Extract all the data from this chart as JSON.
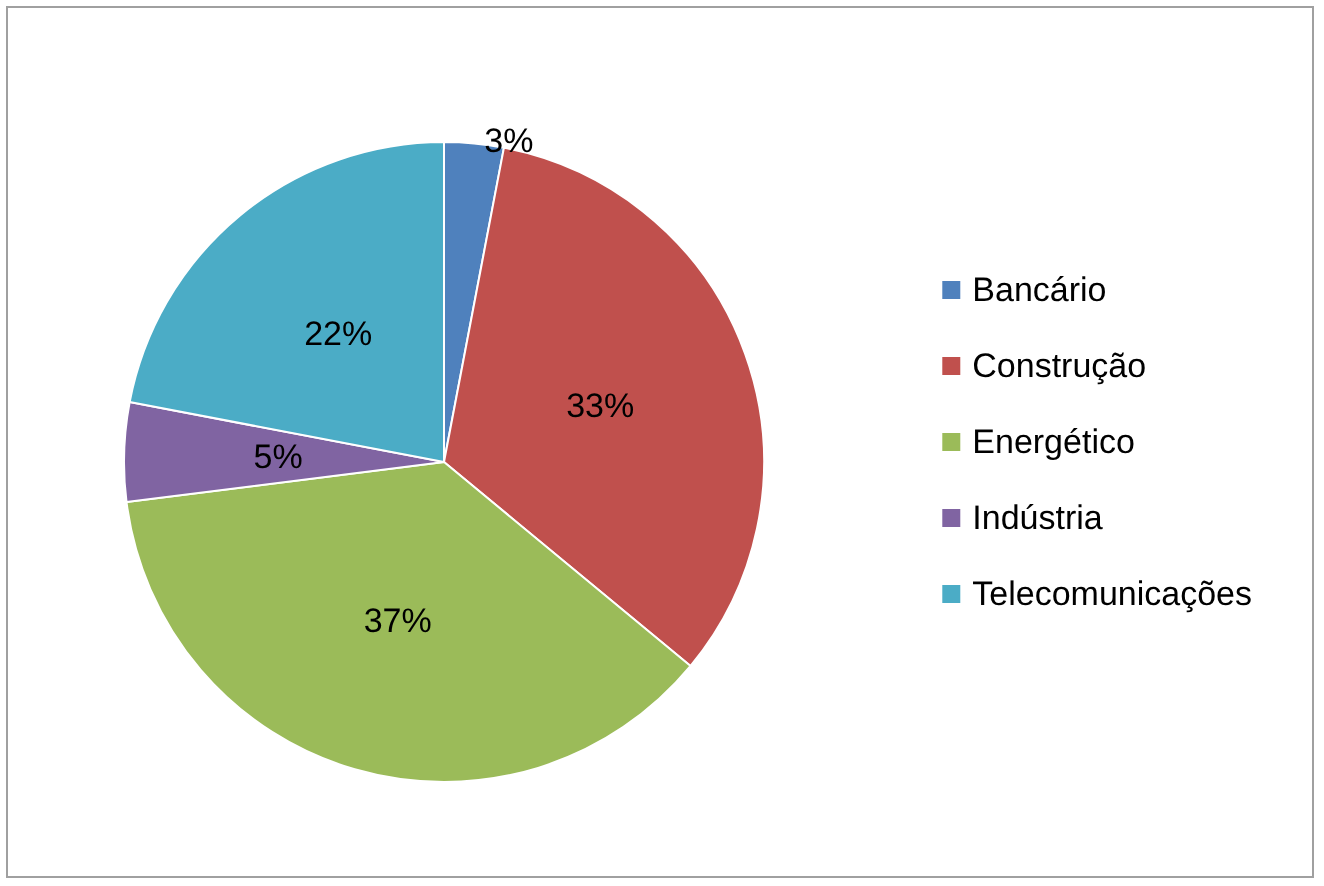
{
  "chart_data": {
    "type": "pie",
    "categories": [
      "Bancário",
      "Construção",
      "Energético",
      "Indústria",
      "Telecomunicações"
    ],
    "values": [
      3,
      33,
      37,
      5,
      22
    ],
    "colors": [
      "#4f81bd",
      "#c0504d",
      "#9bbb59",
      "#8064a2",
      "#4bacc6"
    ],
    "value_labels": [
      "3%",
      "33%",
      "37%",
      "5%",
      "22%"
    ],
    "legend": "right"
  }
}
